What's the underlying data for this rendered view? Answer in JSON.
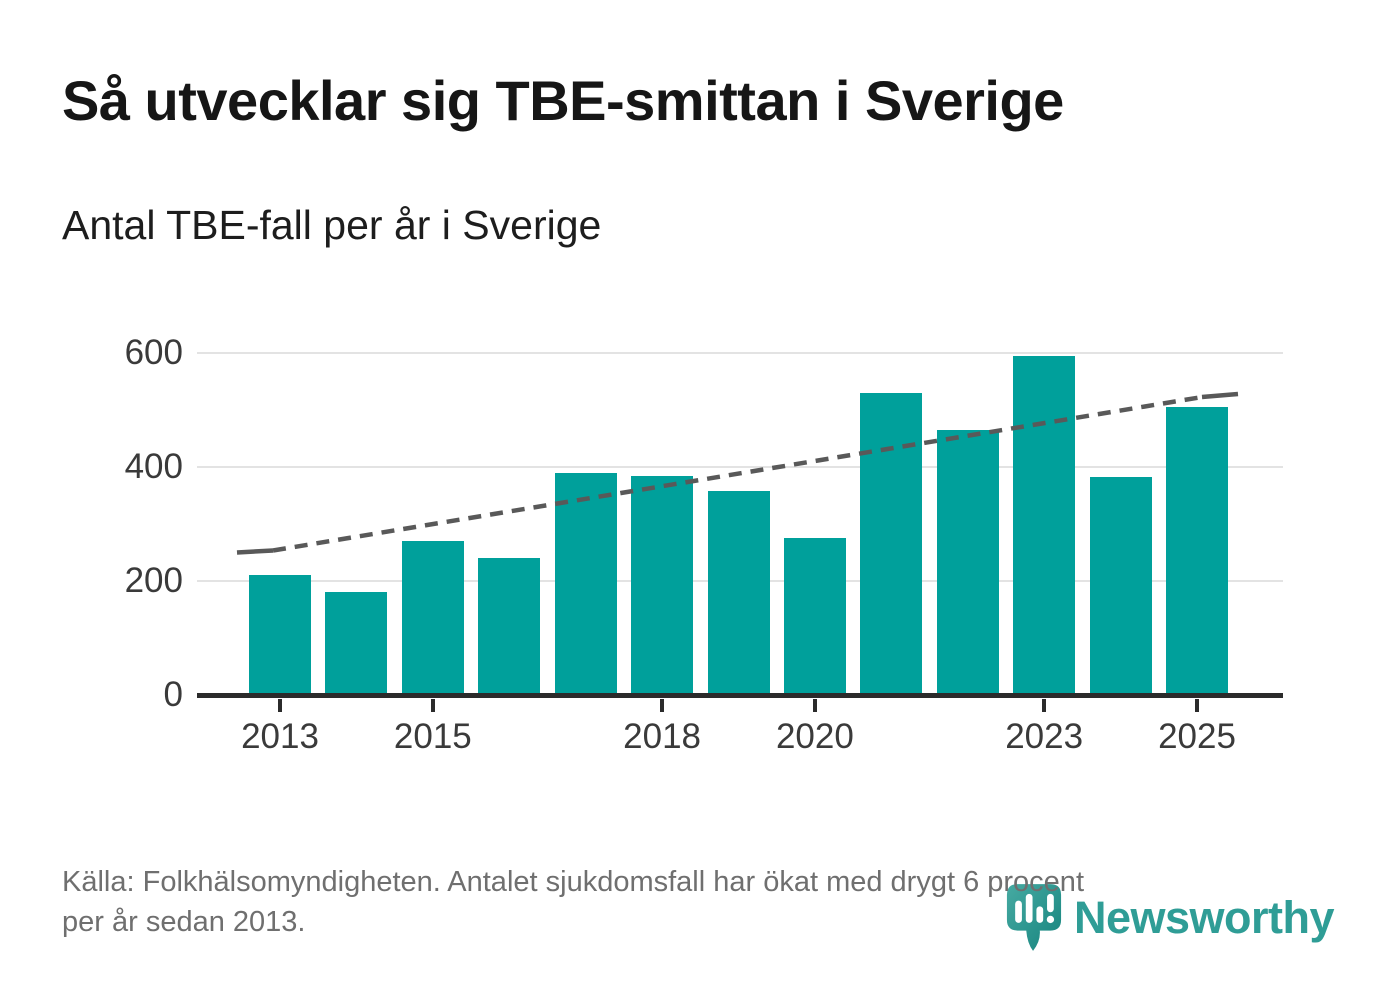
{
  "header": {
    "title": "Så utvecklar sig TBE-smittan i Sverige"
  },
  "chart_data": {
    "type": "bar",
    "title": "Antal TBE-fall per år i Sverige",
    "series_name": "Antal TBE-fall",
    "categories": [
      2013,
      2014,
      2015,
      2016,
      2017,
      2018,
      2019,
      2020,
      2021,
      2022,
      2023,
      2024,
      2025
    ],
    "values": [
      210,
      180,
      270,
      240,
      390,
      385,
      358,
      275,
      530,
      465,
      595,
      383,
      505
    ],
    "ylim": [
      0,
      600
    ],
    "yticks": [
      600,
      400,
      200,
      0
    ],
    "xticks_labeled": [
      2013,
      2015,
      2018,
      2020,
      2023,
      2025
    ],
    "grid": "horizontal",
    "legend": "none",
    "bar_color": "#00a09b",
    "trend": {
      "type": "dashed-line",
      "description": "Trendlinje: ökning med drygt 6 procent per år sedan 2013",
      "start_year": 2013,
      "start_value": 250,
      "end_year": 2025,
      "end_value": 528,
      "color": "#595959"
    }
  },
  "footer": {
    "source_line1": "Källa: Folkhälsomyndigheten. Antalet sjukdomsfall har ökat med drygt 6 procent",
    "source_line2": "per år sedan 2013.",
    "brand": "Newsworthy"
  },
  "colors": {
    "accent_teal": "#00a09b",
    "trend_gray": "#595959",
    "grid_gray": "#e3e3e3",
    "axis_dark": "#2b2b2b",
    "text_dark": "#161616",
    "text_muted": "#6f6f6f",
    "brand_teal": "#2f9d96"
  }
}
